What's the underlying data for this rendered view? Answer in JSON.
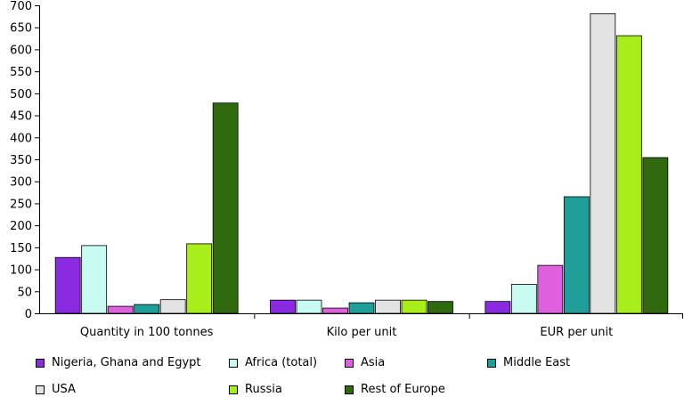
{
  "chart_data": {
    "type": "bar",
    "categories": [
      "Quantity in 100 tonnes",
      "Kilo per unit",
      "EUR per unit"
    ],
    "yticks": [
      "0",
      "50",
      "100",
      "150",
      "200",
      "250",
      "300",
      "350",
      "400",
      "450",
      "500",
      "550",
      "600",
      "650",
      "700"
    ],
    "ylim": [
      0,
      700
    ],
    "grid": false,
    "legend_position": "bottom",
    "series": [
      {
        "name": "Nigeria, Ghana and Egypt",
        "color": "#8a2be2",
        "values": [
          127,
          30,
          27
        ]
      },
      {
        "name": "Africa (total)",
        "color": "#c8fbf1",
        "values": [
          154,
          30,
          66
        ]
      },
      {
        "name": "Asia",
        "color": "#df60df",
        "values": [
          16,
          12,
          109
        ]
      },
      {
        "name": "Middle East",
        "color": "#1f9e9a",
        "values": [
          20,
          24,
          265
        ]
      },
      {
        "name": "USA",
        "color": "#e3e3e3",
        "values": [
          31,
          30,
          681
        ]
      },
      {
        "name": "Russia",
        "color": "#a8ee1a",
        "values": [
          158,
          30,
          631
        ]
      },
      {
        "name": "Rest of Europe",
        "color": "#2f6a0e",
        "values": [
          478,
          27,
          354
        ]
      }
    ]
  }
}
